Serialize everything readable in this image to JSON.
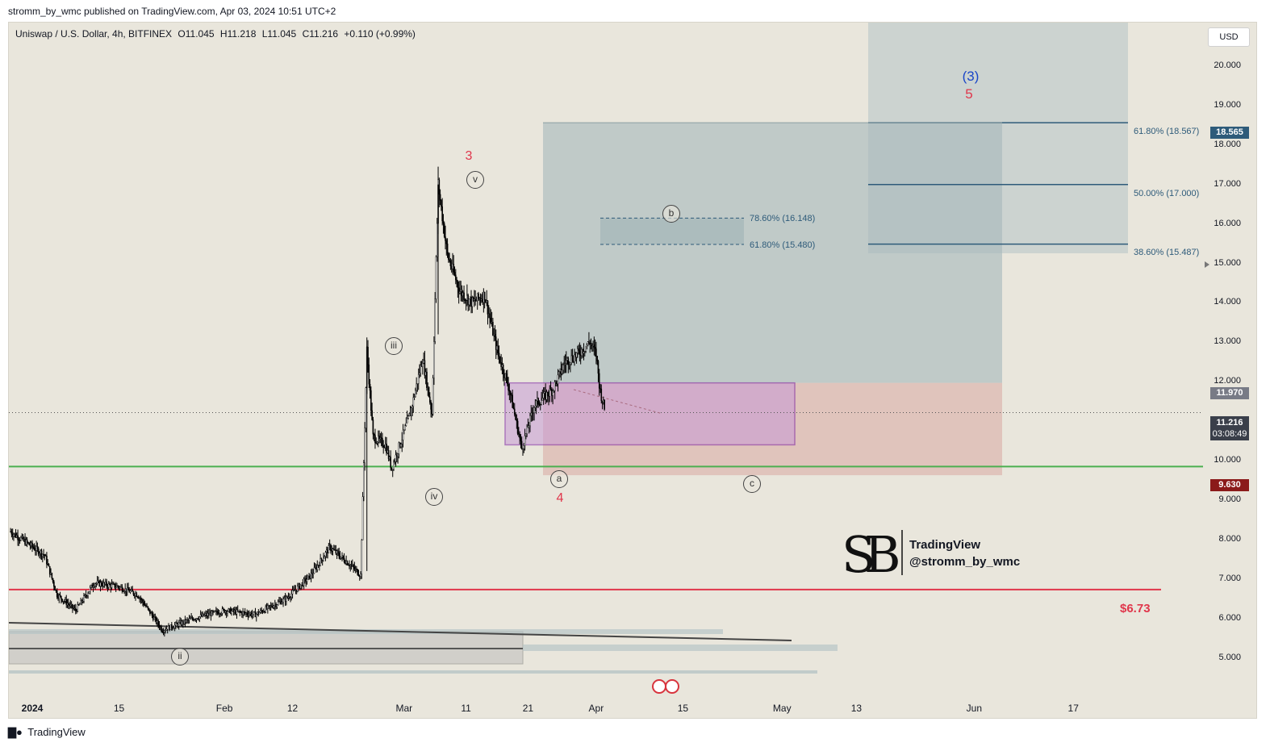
{
  "header": {
    "published_line": "stromm_by_wmc published on TradingView.com, Apr 03, 2024 10:51 UTC+2"
  },
  "legend": {
    "symbol": "Uniswap / U.S. Dollar, 4h, BITFINEX",
    "open": "O11.045",
    "high": "H11.218",
    "low": "L11.045",
    "close": "C11.216",
    "change": "+0.110 (+0.99%)"
  },
  "currency_button": "USD",
  "price_tags": {
    "fib_618": "18.565",
    "box_top": "11.970",
    "last_price": "11.216",
    "countdown": "03:08:49",
    "green_level": "9.630"
  },
  "annotations": {
    "wave3": "3",
    "wave4": "4",
    "wave5": "5",
    "wave_degree": "(3)",
    "v": "v",
    "iii": "iii",
    "iv": "iv",
    "ii": "ii",
    "a": "a",
    "b": "b",
    "c": "c",
    "fib_786": "78.60% (16.148)",
    "fib_618_b": "61.80% (15.480)",
    "fib_618_top": "61.80% (18.567)",
    "fib_500": "50.00% (17.000)",
    "fib_386": "38.60% (15.487)",
    "level_673": "$6.73"
  },
  "watermark": {
    "line1": "TradingView",
    "line2": "@stromm_by_wmc"
  },
  "footer": {
    "brand": "TradingView"
  },
  "colors": {
    "background": "#e9e6dc",
    "green_line": "#4caf50",
    "red_line": "#e0364b",
    "purple_box": "#7b1fa2",
    "fib_line": "#2e5b7a",
    "candle": "#000000"
  },
  "chart_data": {
    "type": "candlestick-line",
    "title": "Uniswap / U.S. Dollar, 4h, BITFINEX",
    "y_ticks": [
      20,
      19,
      18,
      17,
      16,
      15,
      14,
      13,
      12,
      11,
      10,
      9,
      8,
      7,
      6,
      5
    ],
    "y_tick_labels": [
      "20.000",
      "19.000",
      "18.000",
      "17.000",
      "16.000",
      "15.000",
      "14.000",
      "13.000",
      "12.000",
      "11.000",
      "10.000",
      "9.000",
      "8.000",
      "7.000",
      "6.000",
      "5.000"
    ],
    "ylim": [
      4.7,
      21.4
    ],
    "x_tick_labels": [
      "2024",
      "15",
      "Feb",
      "12",
      "Mar",
      "11",
      "21",
      "Apr",
      "15",
      "May",
      "13",
      "Jun",
      "17"
    ],
    "x_tick_days": [
      0,
      14,
      31,
      42,
      60,
      70,
      80,
      91,
      105,
      121,
      133,
      152,
      168
    ],
    "xlim_days": [
      -3.5,
      182
    ],
    "price_path": [
      {
        "day": -3.5,
        "price": 8.2
      },
      {
        "day": 2,
        "price": 7.6
      },
      {
        "day": 4,
        "price": 6.6
      },
      {
        "day": 7,
        "price": 6.2
      },
      {
        "day": 10,
        "price": 6.9
      },
      {
        "day": 14,
        "price": 6.8
      },
      {
        "day": 17,
        "price": 6.6
      },
      {
        "day": 21,
        "price": 5.7
      },
      {
        "day": 26,
        "price": 6.0
      },
      {
        "day": 31,
        "price": 6.2
      },
      {
        "day": 36,
        "price": 6.1
      },
      {
        "day": 41,
        "price": 6.5
      },
      {
        "day": 45,
        "price": 7.1
      },
      {
        "day": 48,
        "price": 7.8
      },
      {
        "day": 51,
        "price": 7.4
      },
      {
        "day": 53,
        "price": 7.1
      },
      {
        "day": 54,
        "price": 12.8
      },
      {
        "day": 55,
        "price": 10.6
      },
      {
        "day": 57,
        "price": 10.4
      },
      {
        "day": 58,
        "price": 9.8
      },
      {
        "day": 61,
        "price": 11.2
      },
      {
        "day": 63,
        "price": 12.6
      },
      {
        "day": 64.5,
        "price": 11.2
      },
      {
        "day": 65.5,
        "price": 17.0
      },
      {
        "day": 67,
        "price": 15.2
      },
      {
        "day": 69,
        "price": 14.3
      },
      {
        "day": 71,
        "price": 14.0
      },
      {
        "day": 73,
        "price": 14.2
      },
      {
        "day": 75,
        "price": 12.8
      },
      {
        "day": 77,
        "price": 11.8
      },
      {
        "day": 79,
        "price": 10.3
      },
      {
        "day": 81,
        "price": 11.4
      },
      {
        "day": 84,
        "price": 11.8
      },
      {
        "day": 86,
        "price": 12.5
      },
      {
        "day": 88,
        "price": 12.7
      },
      {
        "day": 90,
        "price": 13.0
      },
      {
        "day": 91,
        "price": 12.7
      },
      {
        "day": 91.6,
        "price": 11.8
      },
      {
        "day": 92.5,
        "price": 11.2
      }
    ],
    "horizontal_levels": [
      {
        "name": "green support",
        "price": 9.85
      },
      {
        "name": "red support",
        "price": 6.73
      },
      {
        "name": "fib 61.8% top",
        "price": 18.567
      },
      {
        "name": "fib 50%",
        "price": 17.0
      },
      {
        "name": "fib 38.6%",
        "price": 15.487
      },
      {
        "name": "fib 78.6% b",
        "price": 16.148
      },
      {
        "name": "fib 61.8% b",
        "price": 15.48
      }
    ],
    "purple_box": {
      "top": 11.97,
      "bottom": 10.4
    },
    "long_position": {
      "entry": 11.97,
      "target": 18.565,
      "stop": 9.63
    }
  }
}
